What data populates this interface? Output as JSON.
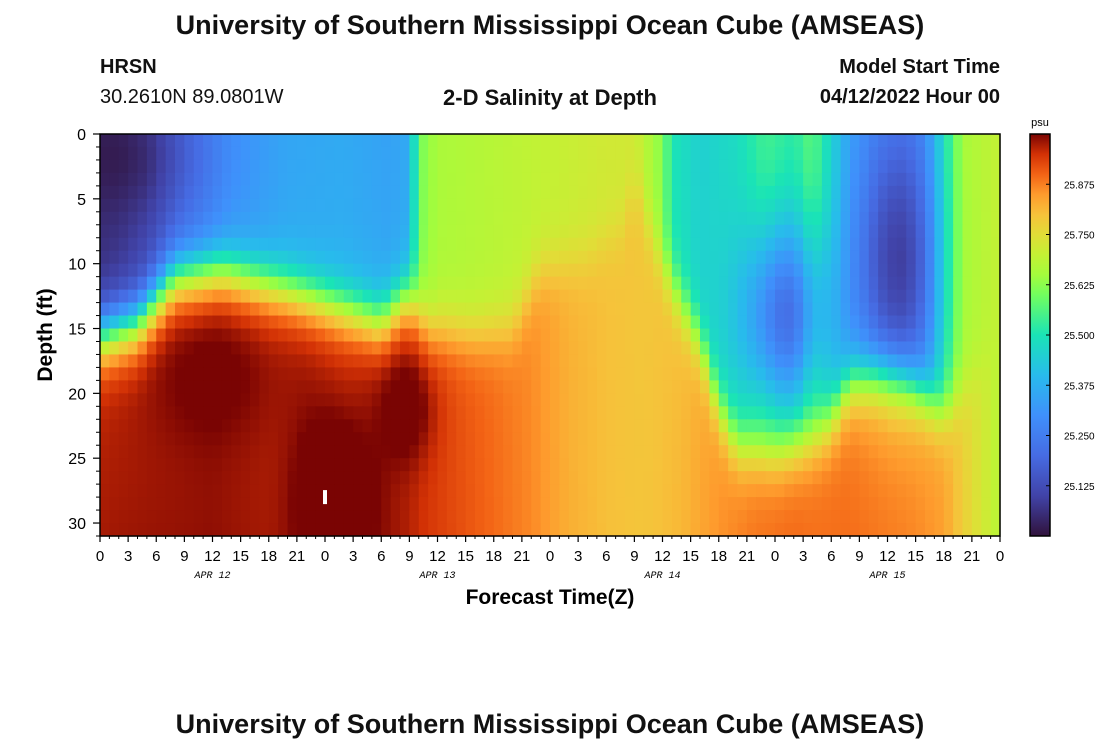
{
  "page": {
    "title": "University of Southern Mississippi Ocean Cube (AMSEAS)",
    "footer_title": "University of Southern Mississippi Ocean Cube (AMSEAS)",
    "station": "HRSN",
    "coords": "30.2610N  89.0801W",
    "subtitle": "2-D Salinity at Depth",
    "model_start_label": "Model Start Time",
    "model_start_value": "04/12/2022 Hour 00"
  },
  "chart_data": {
    "type": "heatmap",
    "title": "2-D Salinity at Depth",
    "xlabel": "Forecast Time(Z)",
    "ylabel": "Depth (ft)",
    "x_range_hours": [
      0,
      96
    ],
    "y_range_ft": [
      0,
      31
    ],
    "x_ticks": [
      {
        "h": 0,
        "label": "0"
      },
      {
        "h": 3,
        "label": "3"
      },
      {
        "h": 6,
        "label": "6"
      },
      {
        "h": 9,
        "label": "9"
      },
      {
        "h": 12,
        "label": "12"
      },
      {
        "h": 15,
        "label": "15"
      },
      {
        "h": 18,
        "label": "18"
      },
      {
        "h": 21,
        "label": "21"
      },
      {
        "h": 24,
        "label": "0"
      },
      {
        "h": 27,
        "label": "3"
      },
      {
        "h": 30,
        "label": "6"
      },
      {
        "h": 33,
        "label": "9"
      },
      {
        "h": 36,
        "label": "12"
      },
      {
        "h": 39,
        "label": "15"
      },
      {
        "h": 42,
        "label": "18"
      },
      {
        "h": 45,
        "label": "21"
      },
      {
        "h": 48,
        "label": "0"
      },
      {
        "h": 51,
        "label": "3"
      },
      {
        "h": 54,
        "label": "6"
      },
      {
        "h": 57,
        "label": "9"
      },
      {
        "h": 60,
        "label": "12"
      },
      {
        "h": 63,
        "label": "15"
      },
      {
        "h": 66,
        "label": "18"
      },
      {
        "h": 69,
        "label": "21"
      },
      {
        "h": 72,
        "label": "0"
      },
      {
        "h": 75,
        "label": "3"
      },
      {
        "h": 78,
        "label": "6"
      },
      {
        "h": 81,
        "label": "9"
      },
      {
        "h": 84,
        "label": "12"
      },
      {
        "h": 87,
        "label": "15"
      },
      {
        "h": 90,
        "label": "18"
      },
      {
        "h": 93,
        "label": "21"
      },
      {
        "h": 96,
        "label": "0"
      }
    ],
    "date_labels": [
      {
        "h": 12,
        "label": "APR 12"
      },
      {
        "h": 36,
        "label": "APR 13"
      },
      {
        "h": 60,
        "label": "APR 14"
      },
      {
        "h": 84,
        "label": "APR 15"
      }
    ],
    "y_ticks": [
      0,
      5,
      10,
      15,
      20,
      25,
      30
    ],
    "colorbar": {
      "unit": "psu",
      "min": 25.0,
      "max": 26.0,
      "ticks": [
        "25.125",
        "25.250",
        "25.375",
        "25.500",
        "25.625",
        "25.750",
        "25.875"
      ],
      "tick_values": [
        25.125,
        25.25,
        25.375,
        25.5,
        25.625,
        25.75,
        25.875
      ]
    },
    "current_marker": {
      "h": 24,
      "depth_ft": 28
    },
    "grid_resolution": {
      "columns": 96,
      "rows": 31
    },
    "salinity_model": {
      "surface_layer": [
        {
          "h": 0,
          "v": 25.05
        },
        {
          "h": 2,
          "v": 25.06
        },
        {
          "h": 5,
          "v": 25.1
        },
        {
          "h": 9,
          "v": 25.2
        },
        {
          "h": 14,
          "v": 25.3
        },
        {
          "h": 20,
          "v": 25.35
        },
        {
          "h": 26,
          "v": 25.36
        },
        {
          "h": 31,
          "v": 25.34
        },
        {
          "h": 33,
          "v": 25.36
        },
        {
          "h": 34,
          "v": 25.6
        },
        {
          "h": 36,
          "v": 25.66
        },
        {
          "h": 42,
          "v": 25.68
        },
        {
          "h": 48,
          "v": 25.7
        },
        {
          "h": 54,
          "v": 25.72
        },
        {
          "h": 57,
          "v": 25.72
        },
        {
          "h": 60,
          "v": 25.62
        },
        {
          "h": 61,
          "v": 25.5
        },
        {
          "h": 64,
          "v": 25.45
        },
        {
          "h": 68,
          "v": 25.48
        },
        {
          "h": 71,
          "v": 25.55
        },
        {
          "h": 74,
          "v": 25.52
        },
        {
          "h": 76,
          "v": 25.58
        },
        {
          "h": 80,
          "v": 25.35
        },
        {
          "h": 83,
          "v": 25.3
        },
        {
          "h": 86,
          "v": 25.28
        },
        {
          "h": 88,
          "v": 25.32
        },
        {
          "h": 90,
          "v": 25.5
        },
        {
          "h": 92,
          "v": 25.66
        },
        {
          "h": 96,
          "v": 25.7
        }
      ],
      "halocline_depth_ft": [
        {
          "h": 0,
          "v": 15.5
        },
        {
          "h": 4,
          "v": 14.5
        },
        {
          "h": 8,
          "v": 11
        },
        {
          "h": 13,
          "v": 10.5
        },
        {
          "h": 20,
          "v": 12
        },
        {
          "h": 28,
          "v": 14
        },
        {
          "h": 30,
          "v": 14.5
        },
        {
          "h": 32,
          "v": 13
        },
        {
          "h": 33,
          "v": 12.5
        },
        {
          "h": 35,
          "v": 15
        },
        {
          "h": 40,
          "v": 15.5
        },
        {
          "h": 44,
          "v": 15
        },
        {
          "h": 46,
          "v": 12
        },
        {
          "h": 47,
          "v": 10.5
        },
        {
          "h": 52,
          "v": 9.5
        },
        {
          "h": 56,
          "v": 7
        },
        {
          "h": 57,
          "v": 3
        },
        {
          "h": 58,
          "v": 6
        },
        {
          "h": 60,
          "v": 10
        },
        {
          "h": 62,
          "v": 13
        },
        {
          "h": 64,
          "v": 16
        },
        {
          "h": 66,
          "v": 21
        },
        {
          "h": 68,
          "v": 24
        },
        {
          "h": 72,
          "v": 24.5
        },
        {
          "h": 76,
          "v": 23.5
        },
        {
          "h": 78,
          "v": 22
        },
        {
          "h": 80,
          "v": 19
        },
        {
          "h": 83,
          "v": 18.5
        },
        {
          "h": 86,
          "v": 19
        },
        {
          "h": 88,
          "v": 20
        },
        {
          "h": 90,
          "v": 21.5
        },
        {
          "h": 92,
          "v": 20
        },
        {
          "h": 96,
          "v": 16
        }
      ],
      "deep_layer": [
        {
          "h": 0,
          "v": 25.94
        },
        {
          "h": 6,
          "v": 25.95
        },
        {
          "h": 12,
          "v": 25.96
        },
        {
          "h": 18,
          "v": 25.95
        },
        {
          "h": 22,
          "v": 25.96
        },
        {
          "h": 26,
          "v": 25.95
        },
        {
          "h": 30,
          "v": 25.96
        },
        {
          "h": 34,
          "v": 25.94
        },
        {
          "h": 40,
          "v": 25.9
        },
        {
          "h": 46,
          "v": 25.86
        },
        {
          "h": 50,
          "v": 25.82
        },
        {
          "h": 54,
          "v": 25.8
        },
        {
          "h": 58,
          "v": 25.79
        },
        {
          "h": 62,
          "v": 25.8
        },
        {
          "h": 66,
          "v": 25.84
        },
        {
          "h": 70,
          "v": 25.87
        },
        {
          "h": 74,
          "v": 25.88
        },
        {
          "h": 80,
          "v": 25.87
        },
        {
          "h": 86,
          "v": 25.85
        },
        {
          "h": 90,
          "v": 25.83
        },
        {
          "h": 93,
          "v": 25.75
        },
        {
          "h": 96,
          "v": 25.68
        }
      ],
      "lens_features": [
        {
          "h": 25,
          "depth_ft": 28,
          "value_delta": 0.1,
          "sx_hours": 2.5,
          "sy_ft": 4
        },
        {
          "h": 12,
          "depth_ft": 18,
          "value_delta": 0.04,
          "sx_hours": 5,
          "sy_ft": 4
        },
        {
          "h": 33,
          "depth_ft": 21,
          "value_delta": 0.07,
          "sx_hours": 2,
          "sy_ft": 3
        },
        {
          "h": 73,
          "depth_ft": 14,
          "value_delta": -0.32,
          "sx_hours": 3,
          "sy_ft": 5
        },
        {
          "h": 85,
          "depth_ft": 10,
          "value_delta": -0.2,
          "sx_hours": 3,
          "sy_ft": 7
        },
        {
          "h": 5,
          "depth_ft": 2,
          "value_delta": -0.05,
          "sx_hours": 5,
          "sy_ft": 3
        }
      ]
    }
  }
}
